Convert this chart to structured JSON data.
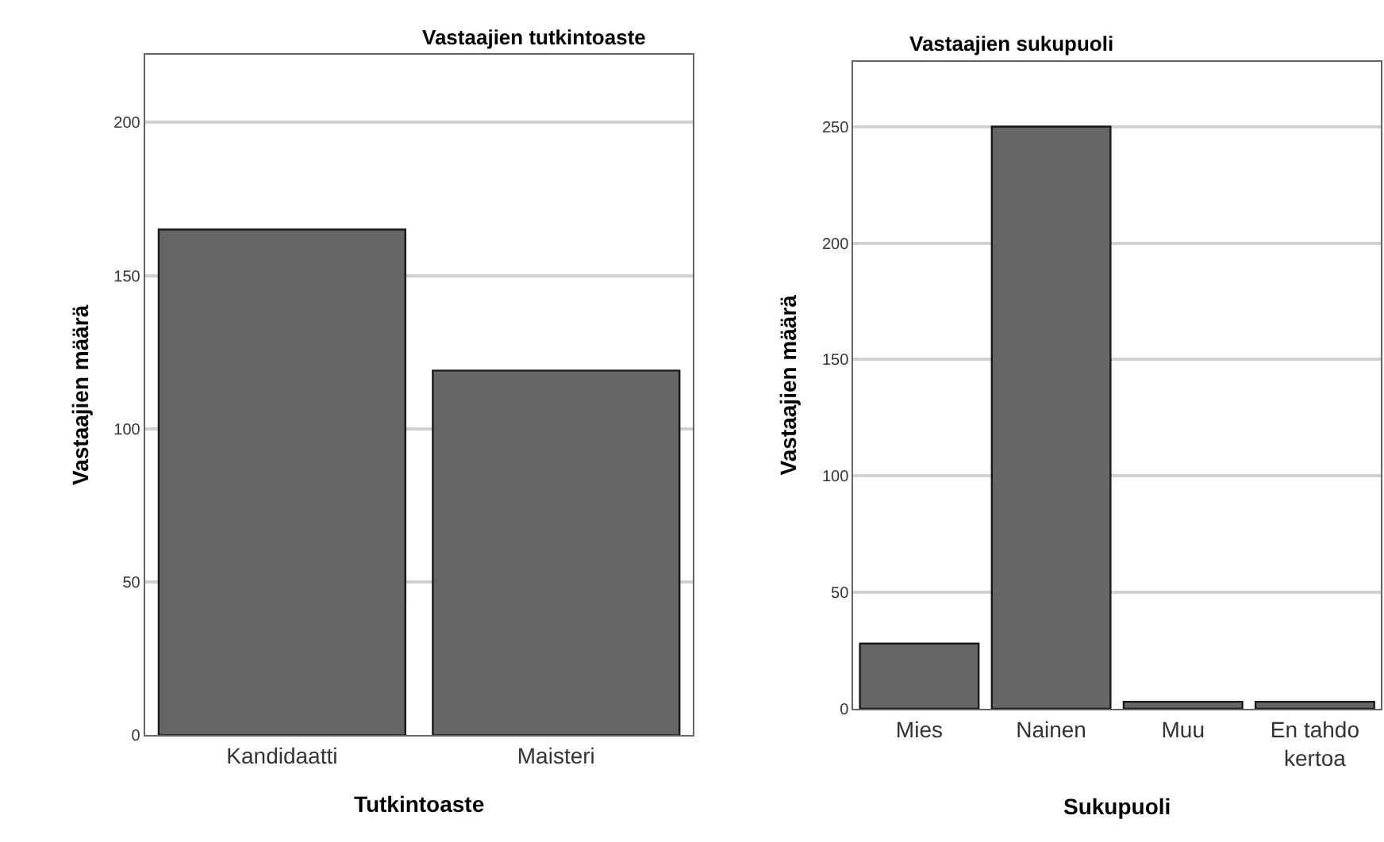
{
  "chart_data": [
    {
      "type": "bar",
      "title": "Vastaajien tutkintoaste",
      "xlabel": "Tutkintoaste",
      "ylabel": "Vastaajien määrä",
      "categories": [
        "Kandidaatti",
        "Maisteri"
      ],
      "values": [
        165,
        119
      ],
      "color": "#666666",
      "ylim": [
        0,
        222
      ],
      "yticks": [
        0,
        50,
        100,
        150,
        200
      ],
      "grid": "y"
    },
    {
      "type": "bar",
      "title": "Vastaajien sukupuoli",
      "xlabel": "Sukupuoli",
      "ylabel": "Vastaajien määrä",
      "categories": [
        "Mies",
        "Nainen",
        "Muu",
        "En tahdo\nkertoa"
      ],
      "values": [
        28,
        250,
        3,
        3
      ],
      "color": "#666666",
      "ylim": [
        0,
        278
      ],
      "yticks": [
        0,
        50,
        100,
        150,
        200,
        250
      ],
      "grid": "y"
    }
  ]
}
